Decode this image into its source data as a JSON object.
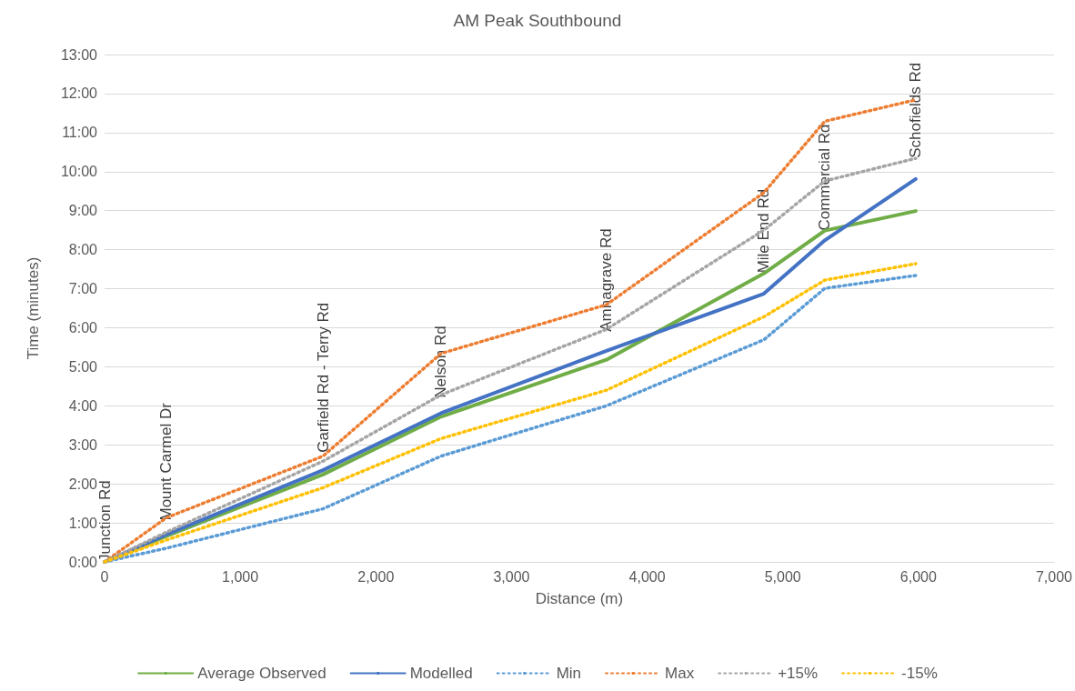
{
  "chart_data": {
    "type": "line",
    "title": "AM Peak Southbound",
    "xlabel": "Distance (m)",
    "ylabel": "Time (minutes)",
    "x": [
      0,
      455,
      1610,
      2480,
      3700,
      4860,
      5310,
      5980
    ],
    "series": [
      {
        "name": "Average Observed",
        "color": "#70ad47",
        "line_style": "solid",
        "values": [
          0,
          0.66,
          2.24,
          3.72,
          5.18,
          7.39,
          8.49,
          8.99
        ]
      },
      {
        "name": "Modelled",
        "color": "#4472c4",
        "line_style": "solid",
        "values": [
          0,
          0.7,
          2.35,
          3.81,
          5.41,
          6.87,
          8.24,
          9.81
        ]
      },
      {
        "name": "Min",
        "color": "#5b9bd5",
        "line_style": "dotted",
        "values": [
          0,
          0.35,
          1.36,
          2.71,
          4.0,
          5.69,
          7.01,
          7.34
        ]
      },
      {
        "name": "Max",
        "color": "#ed7d31",
        "line_style": "dotted",
        "values": [
          0,
          1.13,
          2.71,
          5.34,
          6.59,
          9.46,
          11.29,
          11.84
        ]
      },
      {
        "name": "+15%",
        "color": "#a5a5a5",
        "line_style": "dotted",
        "values": [
          0,
          0.76,
          2.58,
          4.28,
          5.96,
          8.5,
          9.76,
          10.34
        ]
      },
      {
        "name": "-15%",
        "color": "#ffc000",
        "line_style": "dotted",
        "values": [
          0,
          0.56,
          1.9,
          3.16,
          4.4,
          6.28,
          7.22,
          7.64
        ]
      }
    ],
    "xlim": [
      0,
      7000
    ],
    "xticks": [
      0,
      {
        "value": 1000,
        "label": "1,000"
      },
      {
        "value": 2000,
        "label": "2,000"
      },
      {
        "value": 3000,
        "label": "3,000"
      },
      {
        "value": 4000,
        "label": "4,000"
      },
      {
        "value": 5000,
        "label": "5,000"
      },
      {
        "value": 6000,
        "label": "6,000"
      },
      {
        "value": 7000,
        "label": "7,000"
      }
    ],
    "ylim": [
      0,
      13
    ],
    "yticks": [
      {
        "value": 0,
        "label": "0:00"
      },
      {
        "value": 1,
        "label": "1:00"
      },
      {
        "value": 2,
        "label": "2:00"
      },
      {
        "value": 3,
        "label": "3:00"
      },
      {
        "value": 4,
        "label": "4:00"
      },
      {
        "value": 5,
        "label": "5:00"
      },
      {
        "value": 6,
        "label": "6:00"
      },
      {
        "value": 7,
        "label": "7:00"
      },
      {
        "value": 8,
        "label": "8:00"
      },
      {
        "value": 9,
        "label": "9:00"
      },
      {
        "value": 10,
        "label": "10:00"
      },
      {
        "value": 11,
        "label": "11:00"
      },
      {
        "value": 12,
        "label": "12:00"
      },
      {
        "value": 13,
        "label": "13:00"
      }
    ],
    "annotations": [
      {
        "text": "Junction Rd",
        "x": 0,
        "y": 0
      },
      {
        "text": "Mount Carmel Dr",
        "x": 455,
        "y": 1.06
      },
      {
        "text": "Garfield Rd - Terry Rd",
        "x": 1610,
        "y": 2.8
      },
      {
        "text": "Nelson Rd",
        "x": 2480,
        "y": 4.2
      },
      {
        "text": "Amnagrave Rd",
        "x": 3700,
        "y": 5.9
      },
      {
        "text": "Mile End Rd",
        "x": 4860,
        "y": 7.4
      },
      {
        "text": "Commercial Rd",
        "x": 5310,
        "y": 8.49
      },
      {
        "text": "Schofields Rd",
        "x": 5980,
        "y": 10.35
      }
    ],
    "grid": "y",
    "legend": "bottom",
    "marker": "none"
  }
}
